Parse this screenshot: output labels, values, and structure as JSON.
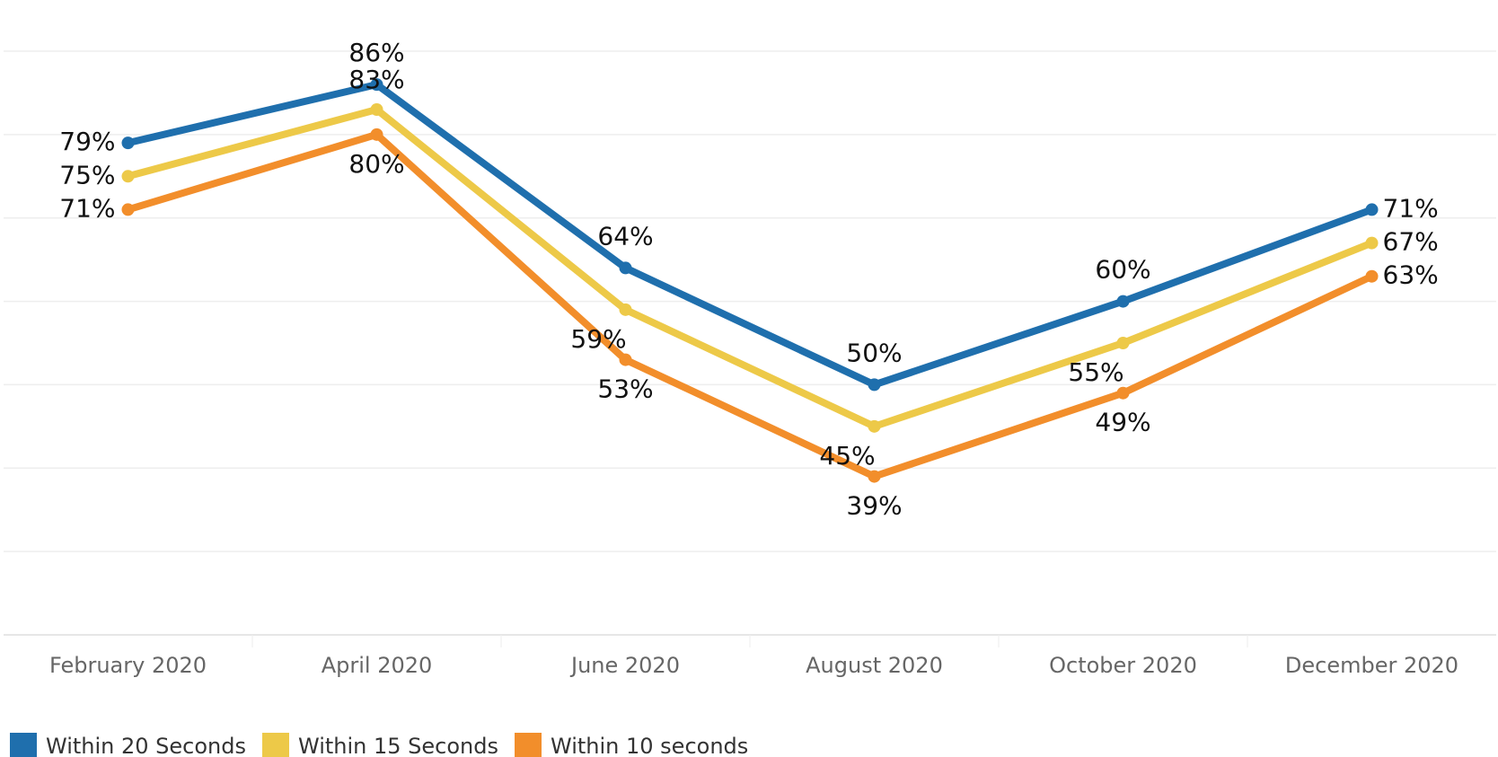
{
  "chart_data": {
    "type": "line",
    "categories": [
      "February 2020",
      "April 2020",
      "June 2020",
      "August 2020",
      "October 2020",
      "December 2020"
    ],
    "series": [
      {
        "name": "Within 20 Seconds",
        "color": "#1f6fad",
        "values": [
          79,
          86,
          64,
          50,
          60,
          71
        ],
        "value_labels": [
          "79%",
          "86%",
          "64%",
          "50%",
          "60%",
          "71%"
        ]
      },
      {
        "name": "Within 15 Seconds",
        "color": "#edc948",
        "values": [
          75,
          83,
          59,
          45,
          55,
          67
        ],
        "value_labels": [
          "75%",
          "83%",
          "59%",
          "45%",
          "55%",
          "67%"
        ]
      },
      {
        "name": "Within 10 seconds",
        "color": "#f28e2b",
        "values": [
          71,
          80,
          53,
          39,
          49,
          63
        ],
        "value_labels": [
          "71%",
          "80%",
          "53%",
          "39%",
          "49%",
          "63%"
        ]
      }
    ],
    "ylim": [
      20,
      90
    ],
    "yticks": [
      20,
      30,
      40,
      50,
      60,
      70,
      80,
      90
    ],
    "grid": true,
    "legend": "bottom-left"
  }
}
